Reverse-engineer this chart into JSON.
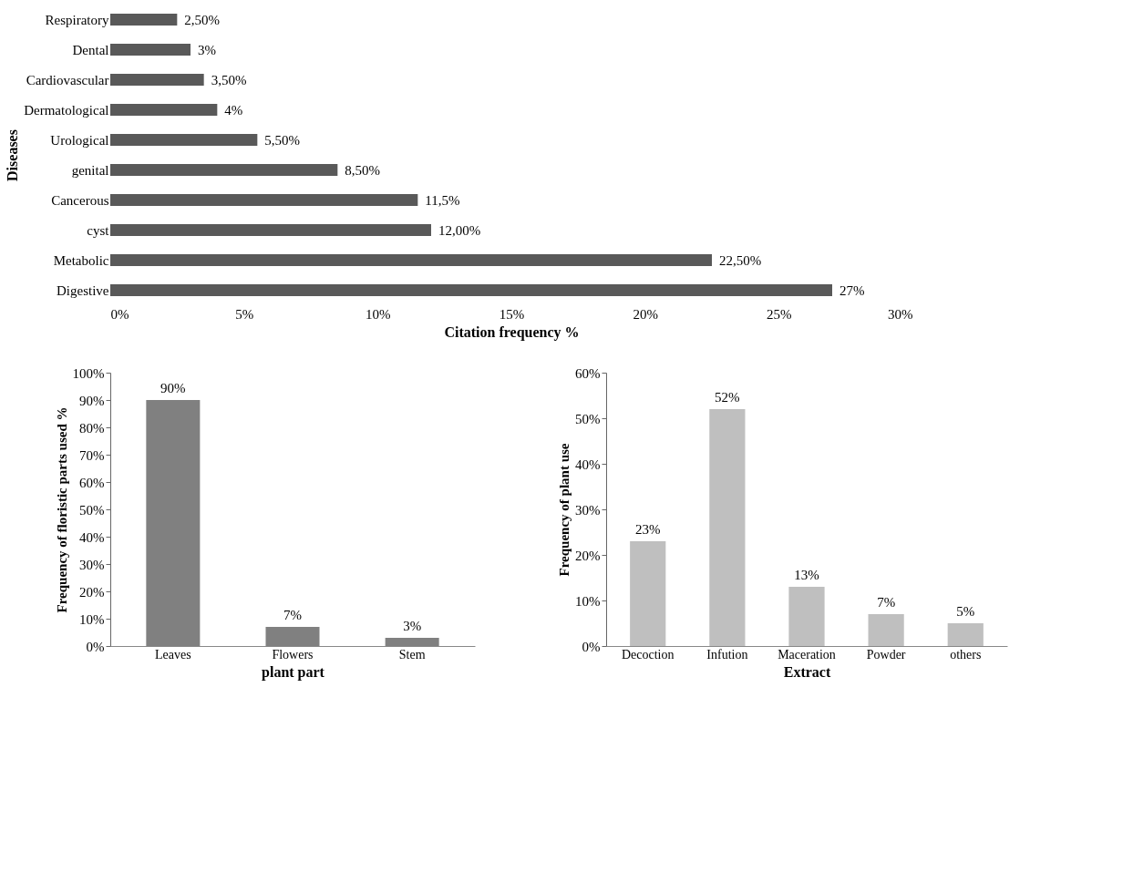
{
  "chart_data": [
    {
      "type": "bar",
      "orientation": "horizontal",
      "ylabel": "Diseases",
      "xlabel": "Citation frequency %",
      "categories": [
        "Respiratory",
        "Dental",
        "Cardiovascular",
        "Dermatological",
        "Urological",
        "genital",
        "Cancerous",
        "cyst",
        "Metabolic",
        "Digestive"
      ],
      "values": [
        2.5,
        3,
        3.5,
        4,
        5.5,
        8.5,
        11.5,
        12,
        22.5,
        27
      ],
      "value_labels": [
        "2,50%",
        "3%",
        "3,50%",
        "4%",
        "5,50%",
        "8,50%",
        "11,5%",
        "12,00%",
        "22,50%",
        "27%"
      ],
      "color": "#595959",
      "xlim": [
        0,
        30
      ],
      "xticks": [
        {
          "value": 0,
          "label": "0%"
        },
        {
          "value": 5,
          "label": "5%"
        },
        {
          "value": 10,
          "label": "10%"
        },
        {
          "value": 15,
          "label": "15%"
        },
        {
          "value": 20,
          "label": "20%"
        },
        {
          "value": 25,
          "label": "25%"
        },
        {
          "value": 30,
          "label": "30%"
        }
      ],
      "grid": false
    },
    {
      "type": "bar",
      "xlabel": "plant part",
      "ylabel": "Frequency of floristic parts used %",
      "categories": [
        "Leaves",
        "Flowers",
        "Stem"
      ],
      "values": [
        90,
        7,
        3
      ],
      "value_labels": [
        "90%",
        "7%",
        "3%"
      ],
      "color": "#808080",
      "ylim": [
        0,
        100
      ],
      "yticks": [
        {
          "value": 0,
          "label": "0%"
        },
        {
          "value": 10,
          "label": "10%"
        },
        {
          "value": 20,
          "label": "20%"
        },
        {
          "value": 30,
          "label": "30%"
        },
        {
          "value": 40,
          "label": "40%"
        },
        {
          "value": 50,
          "label": "50%"
        },
        {
          "value": 60,
          "label": "60%"
        },
        {
          "value": 70,
          "label": "70%"
        },
        {
          "value": 80,
          "label": "80%"
        },
        {
          "value": 90,
          "label": "90%"
        },
        {
          "value": 100,
          "label": "100%"
        }
      ],
      "grid": false
    },
    {
      "type": "bar",
      "xlabel": "Extract",
      "ylabel": "Frequency of plant use",
      "categories": [
        "Decoction",
        "Infution",
        "Maceration",
        "Powder",
        "others"
      ],
      "values": [
        23,
        52,
        13,
        7,
        5
      ],
      "value_labels": [
        "23%",
        "52%",
        "13%",
        "7%",
        "5%"
      ],
      "color": "#bfbfbf",
      "ylim": [
        0,
        60
      ],
      "yticks": [
        {
          "value": 0,
          "label": "0%"
        },
        {
          "value": 10,
          "label": "10%"
        },
        {
          "value": 20,
          "label": "20%"
        },
        {
          "value": 30,
          "label": "30%"
        },
        {
          "value": 40,
          "label": "40%"
        },
        {
          "value": 50,
          "label": "50%"
        },
        {
          "value": 60,
          "label": "60%"
        }
      ],
      "grid": false
    }
  ]
}
